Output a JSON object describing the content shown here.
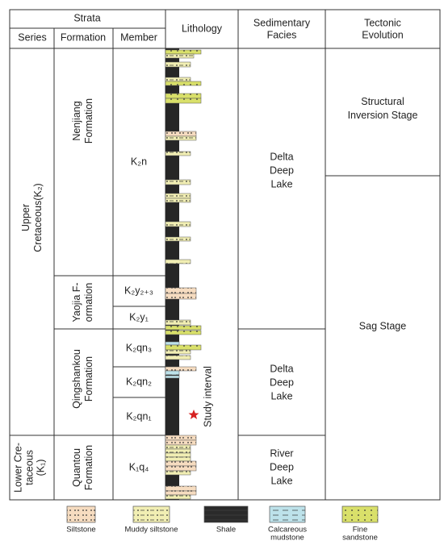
{
  "header": {
    "strata": "Strata",
    "series": "Series",
    "formation": "Formation",
    "member": "Member",
    "lithology": "Lithology",
    "facies": [
      "Sedimentary",
      "Facies"
    ],
    "tectonic": [
      "Tectonic",
      "Evolution"
    ]
  },
  "series": [
    {
      "lines": [
        "Upper",
        "Cretaceous(K₂)"
      ]
    },
    {
      "lines": [
        "Lower Cre-",
        "taceous",
        "(K₁)"
      ]
    }
  ],
  "formations": [
    {
      "lines": [
        "Nenjiang",
        "Formation"
      ]
    },
    {
      "lines": [
        "Yaojia F-",
        "ormation"
      ]
    },
    {
      "lines": [
        "Qingshankou",
        "Formation"
      ]
    },
    {
      "lines": [
        "Quantou",
        "Formation"
      ]
    }
  ],
  "members": [
    "K₂n",
    "K₂y₂₊₃",
    "K₂y₁",
    "K₂qn₃",
    "K₂qn₂",
    "K₂qn₁",
    "K₁q₄"
  ],
  "facies": [
    {
      "lines": [
        "Delta",
        "Deep",
        "Lake"
      ]
    },
    {
      "lines": [
        "Delta",
        "Deep",
        "Lake"
      ]
    },
    {
      "lines": [
        "River",
        "Deep",
        "Lake"
      ]
    }
  ],
  "tectonics": [
    {
      "lines": [
        "Structural",
        "Inversion Stage"
      ]
    },
    {
      "lines": [
        "Sag Stage"
      ]
    }
  ],
  "annotation": "Study interval",
  "legend": [
    {
      "label": [
        "Siltstone"
      ]
    },
    {
      "label": [
        "Muddy siltstone"
      ]
    },
    {
      "label": [
        "Shale"
      ]
    },
    {
      "label": [
        "Calcareous",
        "mudstone"
      ]
    },
    {
      "label": [
        "Fine",
        "sandstone"
      ]
    }
  ]
}
